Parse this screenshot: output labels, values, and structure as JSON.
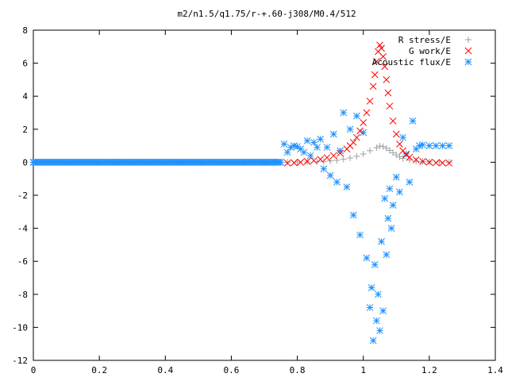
{
  "chart_data": {
    "type": "scatter",
    "title": "m2/n1.5/q1.75/r-+.60-j308/M0.4/512",
    "xlabel": "",
    "ylabel": "",
    "xlim": [
      0,
      1.4
    ],
    "ylim": [
      -12,
      8
    ],
    "x_ticks": [
      {
        "value": 0,
        "label": "0"
      },
      {
        "value": 0.2,
        "label": "0.2"
      },
      {
        "value": 0.4,
        "label": "0.4"
      },
      {
        "value": 0.6,
        "label": "0.6"
      },
      {
        "value": 0.8,
        "label": "0.8"
      },
      {
        "value": 1.0,
        "label": "1"
      },
      {
        "value": 1.2,
        "label": "1.2"
      },
      {
        "value": 1.4,
        "label": "1.4"
      }
    ],
    "y_ticks": [
      {
        "value": 8,
        "label": "8"
      },
      {
        "value": 6,
        "label": "6"
      },
      {
        "value": 4,
        "label": "4"
      },
      {
        "value": 2,
        "label": "2"
      },
      {
        "value": 0,
        "label": "0"
      },
      {
        "value": -2,
        "label": "-2"
      },
      {
        "value": -4,
        "label": "-4"
      },
      {
        "value": -6,
        "label": "-6"
      },
      {
        "value": -8,
        "label": "-8"
      },
      {
        "value": -10,
        "label": "-10"
      },
      {
        "value": -12,
        "label": "-12"
      }
    ],
    "grid": false,
    "legend_position": "top-right",
    "series": [
      {
        "name": "R stress/E",
        "marker": "plus",
        "color": "#a0a0a0",
        "points": [
          [
            0.77,
            0.0
          ],
          [
            0.8,
            0.01
          ],
          [
            0.83,
            0.02
          ],
          [
            0.86,
            0.03
          ],
          [
            0.88,
            0.05
          ],
          [
            0.9,
            0.08
          ],
          [
            0.92,
            0.12
          ],
          [
            0.94,
            0.18
          ],
          [
            0.96,
            0.26
          ],
          [
            0.98,
            0.36
          ],
          [
            1.0,
            0.5
          ],
          [
            1.02,
            0.7
          ],
          [
            1.04,
            0.88
          ],
          [
            1.05,
            0.98
          ],
          [
            1.06,
            0.95
          ],
          [
            1.07,
            0.85
          ],
          [
            1.08,
            0.72
          ],
          [
            1.09,
            0.58
          ],
          [
            1.1,
            0.45
          ],
          [
            1.11,
            0.33
          ],
          [
            1.12,
            0.23
          ],
          [
            1.14,
            0.13
          ],
          [
            1.16,
            0.07
          ],
          [
            1.18,
            0.04
          ],
          [
            1.2,
            0.02
          ],
          [
            1.23,
            0.01
          ],
          [
            1.26,
            0.0
          ]
        ]
      },
      {
        "name": "G work/E",
        "marker": "cross",
        "color": "#ff0000",
        "points": [
          [
            0.77,
            -0.05
          ],
          [
            0.79,
            -0.03
          ],
          [
            0.81,
            0.0
          ],
          [
            0.83,
            0.05
          ],
          [
            0.85,
            0.1
          ],
          [
            0.87,
            0.18
          ],
          [
            0.89,
            0.28
          ],
          [
            0.91,
            0.4
          ],
          [
            0.93,
            0.55
          ],
          [
            0.95,
            0.8
          ],
          [
            0.96,
            1.0
          ],
          [
            0.97,
            1.2
          ],
          [
            0.98,
            1.5
          ],
          [
            0.99,
            1.9
          ],
          [
            1.0,
            2.4
          ],
          [
            1.01,
            3.0
          ],
          [
            1.02,
            3.7
          ],
          [
            1.03,
            4.6
          ],
          [
            1.035,
            5.3
          ],
          [
            1.04,
            6.1
          ],
          [
            1.045,
            6.7
          ],
          [
            1.05,
            7.1
          ],
          [
            1.055,
            6.9
          ],
          [
            1.06,
            6.4
          ],
          [
            1.065,
            5.8
          ],
          [
            1.07,
            5.0
          ],
          [
            1.075,
            4.2
          ],
          [
            1.08,
            3.4
          ],
          [
            1.09,
            2.5
          ],
          [
            1.1,
            1.7
          ],
          [
            1.11,
            1.1
          ],
          [
            1.12,
            0.7
          ],
          [
            1.13,
            0.45
          ],
          [
            1.14,
            0.3
          ],
          [
            1.16,
            0.15
          ],
          [
            1.18,
            0.05
          ],
          [
            1.2,
            0.0
          ],
          [
            1.22,
            -0.03
          ],
          [
            1.24,
            -0.04
          ],
          [
            1.26,
            -0.05
          ]
        ]
      },
      {
        "name": "Acoustic flux/E",
        "marker": "star",
        "color": "#1e90ff",
        "points": [
          [
            0.0,
            0.0
          ],
          [
            0.05,
            0.0
          ],
          [
            0.1,
            0.0
          ],
          [
            0.15,
            0.0
          ],
          [
            0.2,
            0.0
          ],
          [
            0.25,
            0.0
          ],
          [
            0.3,
            0.0
          ],
          [
            0.35,
            0.0
          ],
          [
            0.4,
            0.0
          ],
          [
            0.45,
            0.0
          ],
          [
            0.5,
            0.0
          ],
          [
            0.55,
            0.0
          ],
          [
            0.6,
            0.0
          ],
          [
            0.65,
            0.0
          ],
          [
            0.7,
            0.0
          ],
          [
            0.74,
            0.0
          ],
          [
            0.76,
            1.1
          ],
          [
            0.77,
            0.6
          ],
          [
            0.78,
            0.9
          ],
          [
            0.79,
            1.0
          ],
          [
            0.8,
            0.95
          ],
          [
            0.81,
            0.8
          ],
          [
            0.82,
            0.6
          ],
          [
            0.83,
            1.3
          ],
          [
            0.84,
            0.4
          ],
          [
            0.85,
            1.2
          ],
          [
            0.86,
            0.9
          ],
          [
            0.87,
            1.4
          ],
          [
            0.88,
            -0.4
          ],
          [
            0.89,
            0.9
          ],
          [
            0.9,
            -0.8
          ],
          [
            0.91,
            1.7
          ],
          [
            0.92,
            -1.2
          ],
          [
            0.93,
            0.7
          ],
          [
            0.94,
            3.0
          ],
          [
            0.95,
            -1.5
          ],
          [
            0.96,
            2.0
          ],
          [
            0.97,
            -3.2
          ],
          [
            0.98,
            2.8
          ],
          [
            0.99,
            -4.4
          ],
          [
            1.0,
            1.8
          ],
          [
            1.01,
            -5.8
          ],
          [
            1.02,
            -8.8
          ],
          [
            1.025,
            -7.6
          ],
          [
            1.03,
            -10.8
          ],
          [
            1.035,
            -6.2
          ],
          [
            1.04,
            -9.6
          ],
          [
            1.045,
            -8.0
          ],
          [
            1.05,
            -10.2
          ],
          [
            1.055,
            -4.8
          ],
          [
            1.06,
            -9.0
          ],
          [
            1.065,
            -2.2
          ],
          [
            1.07,
            -5.6
          ],
          [
            1.075,
            -3.4
          ],
          [
            1.08,
            -1.6
          ],
          [
            1.085,
            -4.0
          ],
          [
            1.09,
            -2.6
          ],
          [
            1.1,
            -0.9
          ],
          [
            1.11,
            -1.8
          ],
          [
            1.12,
            1.5
          ],
          [
            1.13,
            0.5
          ],
          [
            1.14,
            -1.2
          ],
          [
            1.15,
            2.5
          ],
          [
            1.16,
            0.8
          ],
          [
            1.17,
            1.0
          ],
          [
            1.18,
            1.05
          ],
          [
            1.2,
            1.0
          ],
          [
            1.22,
            1.0
          ],
          [
            1.24,
            1.0
          ],
          [
            1.26,
            1.0
          ]
        ]
      }
    ]
  }
}
